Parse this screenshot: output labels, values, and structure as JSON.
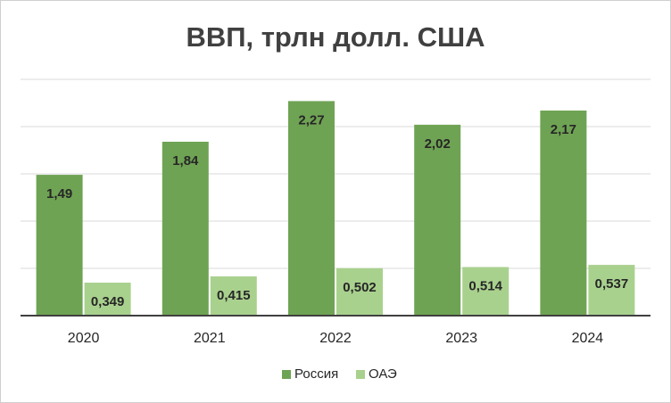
{
  "chart_data": {
    "type": "bar",
    "title": "ВВП, трлн долл. США",
    "categories": [
      "2020",
      "2021",
      "2022",
      "2023",
      "2024"
    ],
    "series": [
      {
        "name": "Россия",
        "color": "#6fa354",
        "values": [
          1.49,
          1.84,
          2.27,
          2.02,
          2.17
        ],
        "value_labels": [
          "1,49",
          "1,84",
          "2,27",
          "2,02",
          "2,17"
        ]
      },
      {
        "name": "ОАЭ",
        "color": "#a9d18e",
        "values": [
          0.349,
          0.415,
          0.502,
          0.514,
          0.537
        ],
        "value_labels": [
          "0,349",
          "0,415",
          "0,502",
          "0,514",
          "0,537"
        ]
      }
    ],
    "ylim": [
      0,
      2.5
    ],
    "yticks": [
      0,
      0.5,
      1,
      1.5,
      2,
      2.5
    ],
    "grid": true,
    "legend": "bottom"
  }
}
